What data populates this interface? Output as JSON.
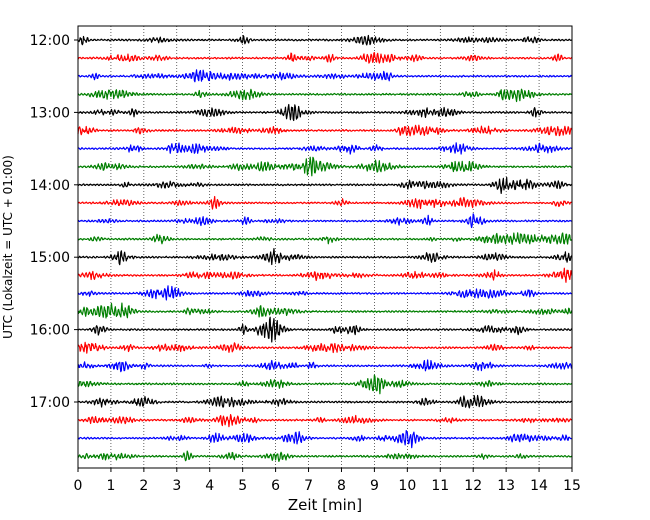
{
  "chart_data": {
    "type": "line",
    "title": "",
    "xlabel": "Zeit  [min]",
    "ylabel": "UTC (Lokalzeit = UTC + 01:00)",
    "xlim": [
      0,
      15
    ],
    "x_ticks": [
      "0",
      "1",
      "2",
      "3",
      "4",
      "5",
      "6",
      "7",
      "8",
      "9",
      "10",
      "11",
      "12",
      "13",
      "14",
      "15"
    ],
    "y_ticks": [
      "12:00",
      "13:00",
      "14:00",
      "15:00",
      "16:00",
      "17:00"
    ],
    "grid": "vertical dotted",
    "trace_interval_min": 15,
    "trace_colors": [
      "#000000",
      "#ff0000",
      "#0000ff",
      "#007f00"
    ],
    "traces": [
      {
        "start": "12:00"
      },
      {
        "start": "12:15"
      },
      {
        "start": "12:30"
      },
      {
        "start": "12:45"
      },
      {
        "start": "13:00"
      },
      {
        "start": "13:15"
      },
      {
        "start": "13:30"
      },
      {
        "start": "13:45"
      },
      {
        "start": "14:00"
      },
      {
        "start": "14:15"
      },
      {
        "start": "14:30"
      },
      {
        "start": "14:45"
      },
      {
        "start": "15:00"
      },
      {
        "start": "15:15"
      },
      {
        "start": "15:30"
      },
      {
        "start": "15:45"
      },
      {
        "start": "16:00"
      },
      {
        "start": "16:15"
      },
      {
        "start": "16:30"
      },
      {
        "start": "16:45"
      },
      {
        "start": "17:00"
      },
      {
        "start": "17:15"
      },
      {
        "start": "17:30"
      },
      {
        "start": "17:45"
      }
    ]
  }
}
